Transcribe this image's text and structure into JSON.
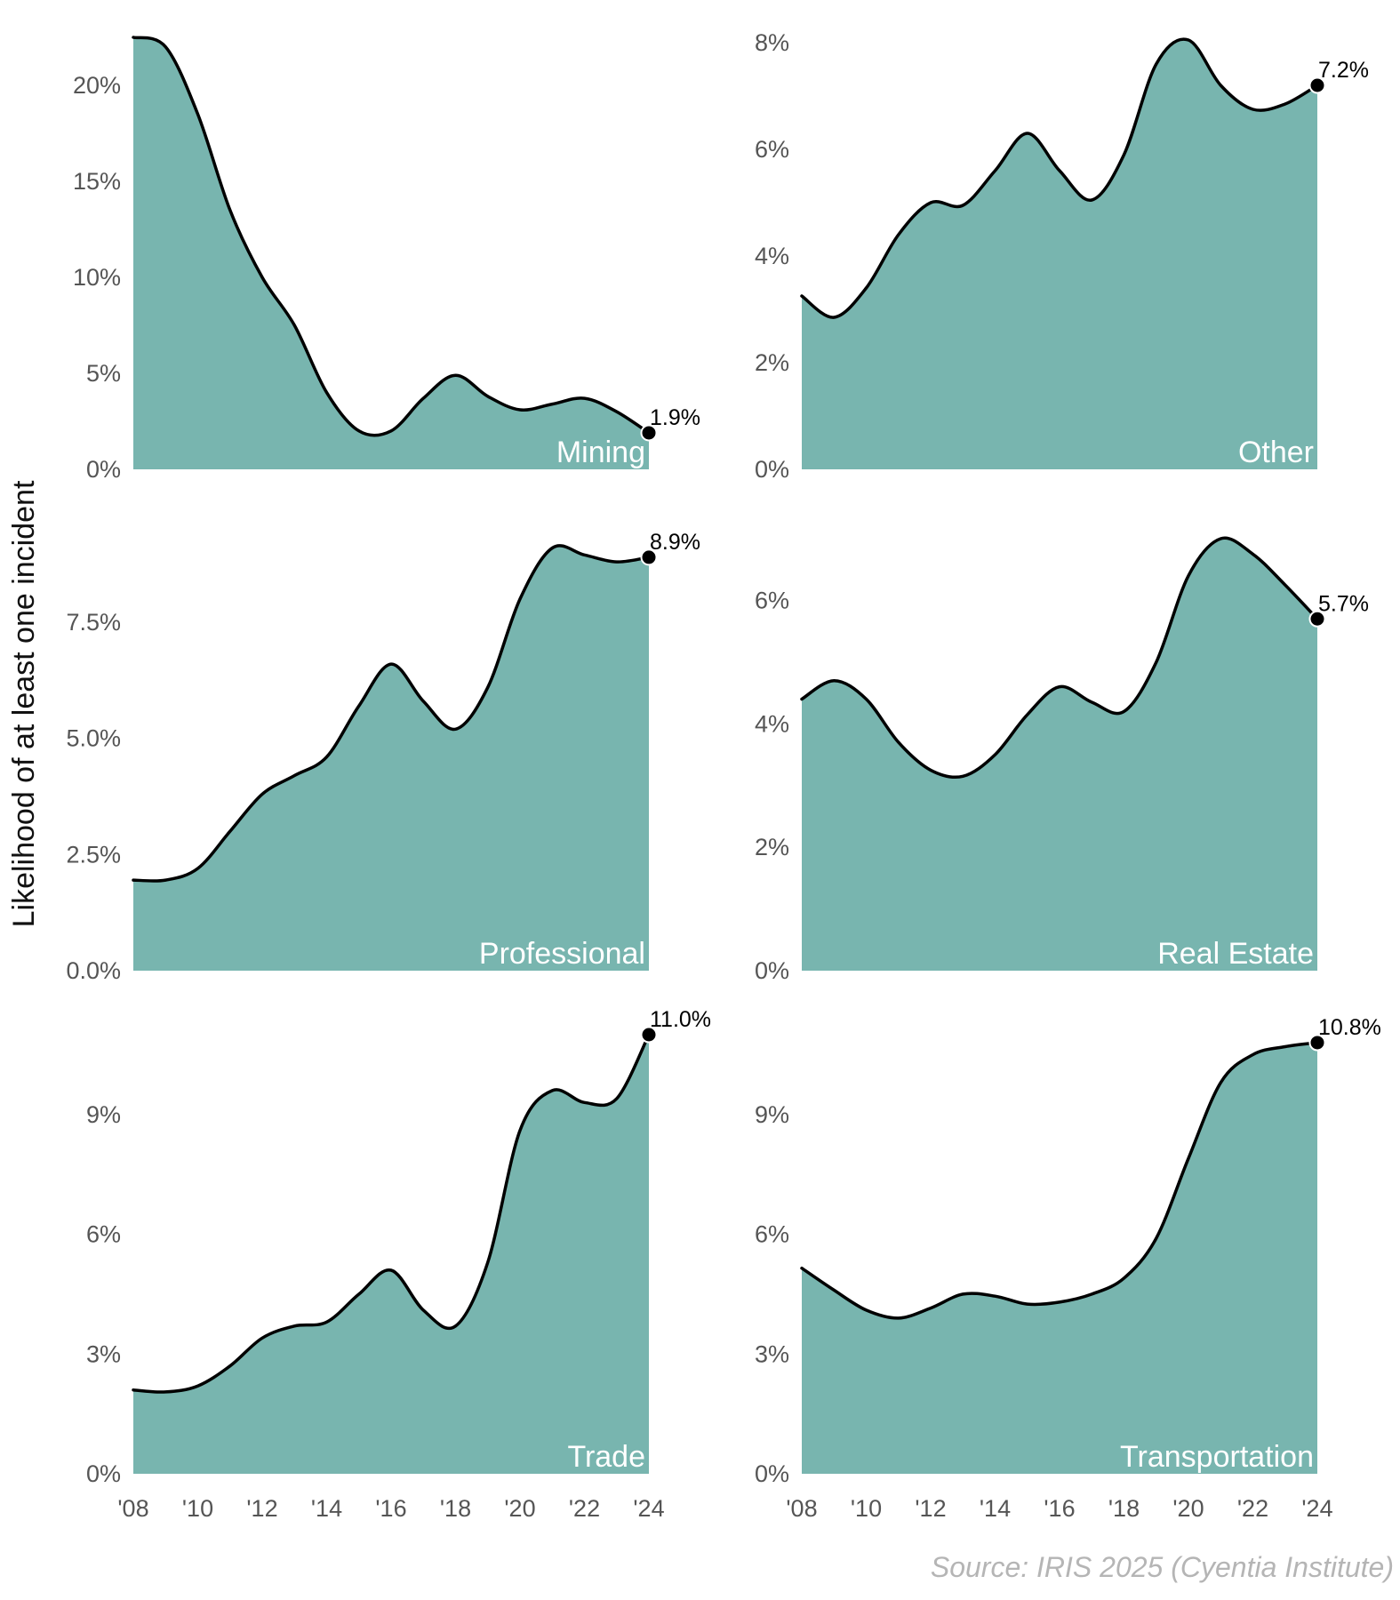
{
  "ylabel": "Likelihood of at least one incident",
  "source": "Source: IRIS 2025 (Cyentia Institute)",
  "colors": {
    "fill": "#78b5af",
    "line": "#000000",
    "panel_title": "#ffffff",
    "tick": "#555555"
  },
  "chart_data": [
    {
      "type": "area",
      "title": "Mining",
      "x": [
        2008,
        2009,
        2010,
        2011,
        2012,
        2013,
        2014,
        2015,
        2016,
        2017,
        2018,
        2019,
        2020,
        2021,
        2022,
        2023,
        2024
      ],
      "values": [
        22.5,
        22.0,
        18.5,
        13.5,
        10.0,
        7.5,
        4.0,
        2.0,
        2.0,
        3.7,
        4.9,
        3.8,
        3.1,
        3.4,
        3.7,
        3.0,
        1.9
      ],
      "ylim": [
        0,
        22.5
      ],
      "yticks": [
        0,
        5,
        10,
        15,
        20
      ],
      "ytick_labels": [
        "0%",
        "5%",
        "10%",
        "15%",
        "20%"
      ],
      "end_label": "1.9%"
    },
    {
      "type": "area",
      "title": "Other",
      "x": [
        2008,
        2009,
        2010,
        2011,
        2012,
        2013,
        2014,
        2015,
        2016,
        2017,
        2018,
        2019,
        2020,
        2021,
        2022,
        2023,
        2024
      ],
      "values": [
        3.25,
        2.85,
        3.4,
        4.4,
        5.0,
        4.95,
        5.6,
        6.3,
        5.6,
        5.05,
        5.9,
        7.6,
        8.05,
        7.2,
        6.75,
        6.85,
        7.2
      ],
      "ylim": [
        0,
        8.1
      ],
      "yticks": [
        0,
        2,
        4,
        6,
        8
      ],
      "ytick_labels": [
        "0%",
        "2%",
        "4%",
        "6%",
        "8%"
      ],
      "end_label": "7.2%"
    },
    {
      "type": "area",
      "title": "Professional",
      "x": [
        2008,
        2009,
        2010,
        2011,
        2012,
        2013,
        2014,
        2015,
        2016,
        2017,
        2018,
        2019,
        2020,
        2021,
        2022,
        2023,
        2024
      ],
      "values": [
        1.95,
        1.95,
        2.2,
        3.0,
        3.8,
        4.2,
        4.6,
        5.7,
        6.6,
        5.8,
        5.2,
        6.1,
        8.0,
        9.1,
        8.95,
        8.8,
        8.9
      ],
      "ylim": [
        0,
        9.3
      ],
      "yticks": [
        0,
        2.5,
        5,
        7.5
      ],
      "ytick_labels": [
        "0.0%",
        "2.5%",
        "5.0%",
        "7.5%"
      ],
      "end_label": "8.9%"
    },
    {
      "type": "area",
      "title": "Real Estate",
      "x": [
        2008,
        2009,
        2010,
        2011,
        2012,
        2013,
        2014,
        2015,
        2016,
        2017,
        2018,
        2019,
        2020,
        2021,
        2022,
        2023,
        2024
      ],
      "values": [
        4.4,
        4.7,
        4.4,
        3.7,
        3.25,
        3.15,
        3.5,
        4.15,
        4.6,
        4.35,
        4.2,
        5.0,
        6.4,
        7.0,
        6.75,
        6.25,
        5.7
      ],
      "ylim": [
        0,
        7.0
      ],
      "yticks": [
        0,
        2,
        4,
        6
      ],
      "ytick_labels": [
        "0%",
        "2%",
        "4%",
        "6%"
      ],
      "end_label": "5.7%"
    },
    {
      "type": "area",
      "title": "Trade",
      "x": [
        2008,
        2009,
        2010,
        2011,
        2012,
        2013,
        2014,
        2015,
        2016,
        2017,
        2018,
        2019,
        2020,
        2021,
        2022,
        2023,
        2024
      ],
      "values": [
        2.1,
        2.05,
        2.2,
        2.7,
        3.4,
        3.7,
        3.8,
        4.5,
        5.1,
        4.1,
        3.7,
        5.3,
        8.6,
        9.6,
        9.3,
        9.4,
        11.0
      ],
      "ylim": [
        0,
        11.0
      ],
      "yticks": [
        0,
        3,
        6,
        9
      ],
      "ytick_labels": [
        "0%",
        "3%",
        "6%",
        "9%"
      ],
      "end_label": "11.0%"
    },
    {
      "type": "area",
      "title": "Transportation",
      "x": [
        2008,
        2009,
        2010,
        2011,
        2012,
        2013,
        2014,
        2015,
        2016,
        2017,
        2018,
        2019,
        2020,
        2021,
        2022,
        2023,
        2024
      ],
      "values": [
        5.15,
        4.6,
        4.1,
        3.9,
        4.15,
        4.5,
        4.45,
        4.25,
        4.3,
        4.5,
        4.9,
        5.9,
        7.9,
        9.8,
        10.5,
        10.7,
        10.8
      ],
      "ylim": [
        0,
        11.0
      ],
      "yticks": [
        0,
        3,
        6,
        9
      ],
      "ytick_labels": [
        "0%",
        "3%",
        "6%",
        "9%"
      ],
      "end_label": "10.8%"
    }
  ],
  "xticks": [
    2008,
    2010,
    2012,
    2014,
    2016,
    2018,
    2020,
    2022,
    2024
  ],
  "xtick_labels": [
    "'08",
    "'10",
    "'12",
    "'14",
    "'16",
    "'18",
    "'20",
    "'22",
    "'24"
  ]
}
